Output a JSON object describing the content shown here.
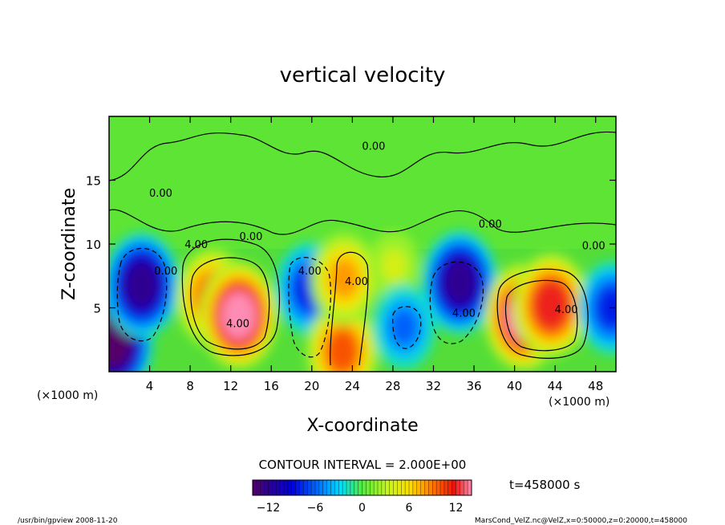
{
  "chart_data": {
    "type": "heatmap",
    "title": "vertical velocity",
    "xlabel": "X-coordinate",
    "ylabel": "Z-coordinate",
    "x_unit_left": "(×1000 m)",
    "x_unit_right": "(×1000 m)",
    "xlim": [
      0,
      50
    ],
    "ylim": [
      0,
      20
    ],
    "x_ticks": [
      4,
      8,
      12,
      16,
      20,
      24,
      28,
      32,
      36,
      40,
      44,
      48
    ],
    "y_ticks": [
      5,
      10,
      15
    ],
    "contour_interval": "CONTOUR INTERVAL = 2.000E+00",
    "contour_labels": [
      {
        "text": "4.00",
        "x": 8.6,
        "y": 9.7
      },
      {
        "text": "4.00",
        "x": 12.7,
        "y": 3.5
      },
      {
        "text": "4.00",
        "x": 19.8,
        "y": 7.6
      },
      {
        "text": "4.00",
        "x": 24.4,
        "y": 6.8
      },
      {
        "text": "4.00",
        "x": 35.0,
        "y": 4.3
      },
      {
        "text": "4.00",
        "x": 45.1,
        "y": 4.6
      },
      {
        "text": "0.00",
        "x": 26.1,
        "y": 17.4
      },
      {
        "text": "0.00",
        "x": 5.1,
        "y": 13.7
      },
      {
        "text": "0.00",
        "x": 14.0,
        "y": 10.3
      },
      {
        "text": "0.00",
        "x": 37.6,
        "y": 11.3
      },
      {
        "text": "0.00",
        "x": 47.8,
        "y": 9.6
      },
      {
        "text": "0.00",
        "x": 5.6,
        "y": 7.6
      }
    ],
    "features": [
      {
        "x": 0.4,
        "y": 2.3,
        "value": -14
      },
      {
        "x": 3.2,
        "y": 6.8,
        "value": -12
      },
      {
        "x": 10.2,
        "y": 5.8,
        "value": 10
      },
      {
        "x": 12.8,
        "y": 4.4,
        "value": 13
      },
      {
        "x": 19.8,
        "y": 6.5,
        "value": -8
      },
      {
        "x": 23.0,
        "y": 1.6,
        "value": 9
      },
      {
        "x": 23.2,
        "y": 7.3,
        "value": 7
      },
      {
        "x": 28.1,
        "y": 8.3,
        "value": 3
      },
      {
        "x": 29.1,
        "y": 3.5,
        "value": -6
      },
      {
        "x": 34.6,
        "y": 7.0,
        "value": -11
      },
      {
        "x": 40.9,
        "y": 4.3,
        "value": 13
      },
      {
        "x": 43.6,
        "y": 5.2,
        "value": 12
      },
      {
        "x": 49.6,
        "y": 5.0,
        "value": -8
      }
    ],
    "colorbar": {
      "min": -14,
      "max": 14,
      "tick_values": [
        -12,
        -6,
        0,
        6,
        12
      ],
      "tick_labels": [
        "−12",
        "−6",
        "0",
        "6",
        "12"
      ]
    },
    "time_label": "t=458000 s",
    "footer_left": "/usr/bin/gpview  2008-11-20",
    "footer_right": "MarsCond_VelZ.nc@VelZ,x=0:50000,z=0:20000,t=458000"
  }
}
